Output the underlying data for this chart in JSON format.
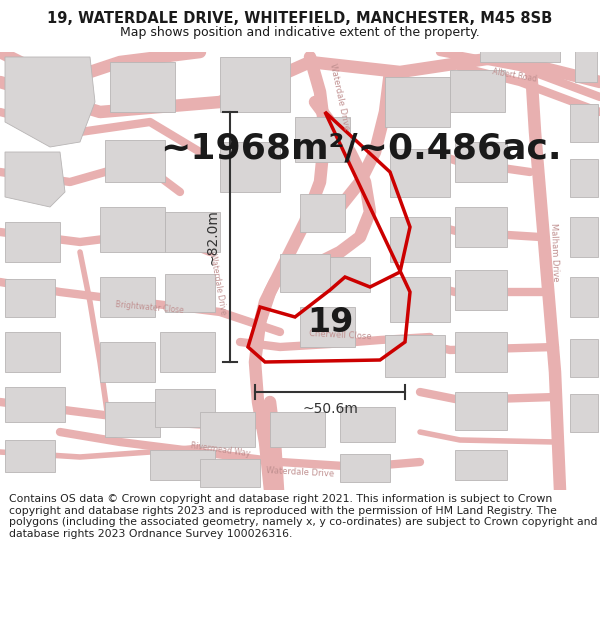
{
  "title_line1": "19, WATERDALE DRIVE, WHITEFIELD, MANCHESTER, M45 8SB",
  "title_line2": "Map shows position and indicative extent of the property.",
  "area_label": "~1968m²/~0.486ac.",
  "number_label": "19",
  "dim_horizontal": "~50.6m",
  "dim_vertical": "~82.0m",
  "footer_text": "Contains OS data © Crown copyright and database right 2021. This information is subject to Crown copyright and database rights 2023 and is reproduced with the permission of HM Land Registry. The polygons (including the associated geometry, namely x, y co-ordinates) are subject to Crown copyright and database rights 2023 Ordnance Survey 100026316.",
  "map_bg": "#f2f0f0",
  "road_color": "#e8b0b0",
  "building_color": "#d8d5d5",
  "building_outline": "#b8b5b5",
  "property_outline": "#cc0000",
  "dim_line_color": "#333333",
  "text_color": "#1a1a1a",
  "road_label_color": "#c09090",
  "title_fontsize": 10.5,
  "subtitle_fontsize": 9,
  "area_fontsize": 26,
  "number_fontsize": 24,
  "dim_fontsize": 10,
  "footer_fontsize": 7.8
}
